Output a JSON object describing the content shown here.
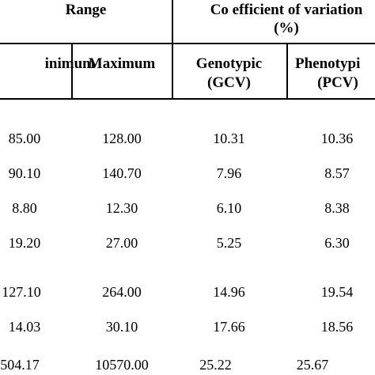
{
  "headers": {
    "range": "Range",
    "cv_line1": "Co efficient of variation",
    "cv_line2": "(%)",
    "minimum": "inimum",
    "maximum": "Maximum",
    "genotypic_line1": "Genotypic",
    "genotypic_line2": "(GCV)",
    "phenotypic_line1": "Phenotypi",
    "phenotypic_line2": "(PCV)"
  },
  "rows": [
    {
      "min": "85.00",
      "max": "128.00",
      "gcv": "10.31",
      "pcv": "10.36"
    },
    {
      "min": "90.10",
      "max": "140.70",
      "gcv": "7.96",
      "pcv": "8.57"
    },
    {
      "min": "8.80",
      "max": "12.30",
      "gcv": "6.10",
      "pcv": "8.38"
    },
    {
      "min": "19.20",
      "max": "27.00",
      "gcv": "5.25",
      "pcv": "6.30"
    },
    {
      "min": "127.10",
      "max": "264.00",
      "gcv": "14.96",
      "pcv": "19.54"
    },
    {
      "min": "14.03",
      "max": "30.10",
      "gcv": "17.66",
      "pcv": "18.56"
    },
    {
      "min": "504.17",
      "max": "10570.00",
      "gcv": "25.22",
      "pcv": "25.67"
    }
  ]
}
